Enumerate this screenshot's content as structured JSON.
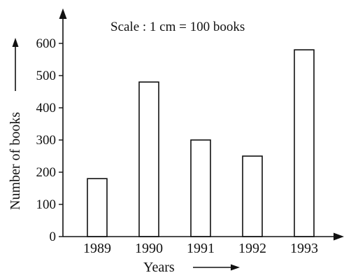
{
  "chart_data": {
    "type": "bar",
    "title": "Scale : 1 cm = 100 books",
    "xlabel": "Years",
    "ylabel": "Number of books",
    "categories": [
      "1989",
      "1990",
      "1991",
      "1992",
      "1993"
    ],
    "values": [
      180,
      480,
      300,
      250,
      580
    ],
    "ylim": [
      0,
      600
    ],
    "yticks": [
      "0",
      "100",
      "200",
      "300",
      "400",
      "500",
      "600"
    ],
    "grid": false,
    "legend": "none",
    "colors": {
      "bar_fill": "#ffffff",
      "bar_stroke": "#111111"
    }
  }
}
